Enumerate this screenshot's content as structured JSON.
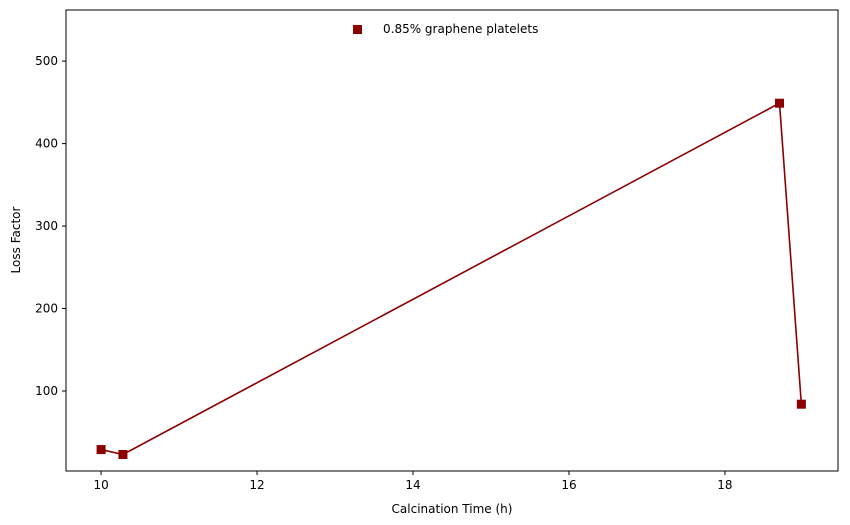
{
  "chart_data": {
    "type": "line",
    "title": "",
    "xlabel": "Calcination Time (h)",
    "ylabel": "Loss Factor",
    "xlim": [
      9.55,
      19.45
    ],
    "ylim": [
      3,
      562
    ],
    "xticks": [
      10,
      12,
      14,
      16,
      18
    ],
    "yticks": [
      100,
      200,
      300,
      400,
      500
    ],
    "grid": false,
    "legend_position": "top-center",
    "series": [
      {
        "name": "0.85% graphene platelets",
        "color": "#8b0000",
        "marker": "square",
        "x": [
          10.0,
          10.28,
          18.7,
          18.98
        ],
        "y": [
          29,
          23,
          449,
          84
        ]
      }
    ]
  }
}
